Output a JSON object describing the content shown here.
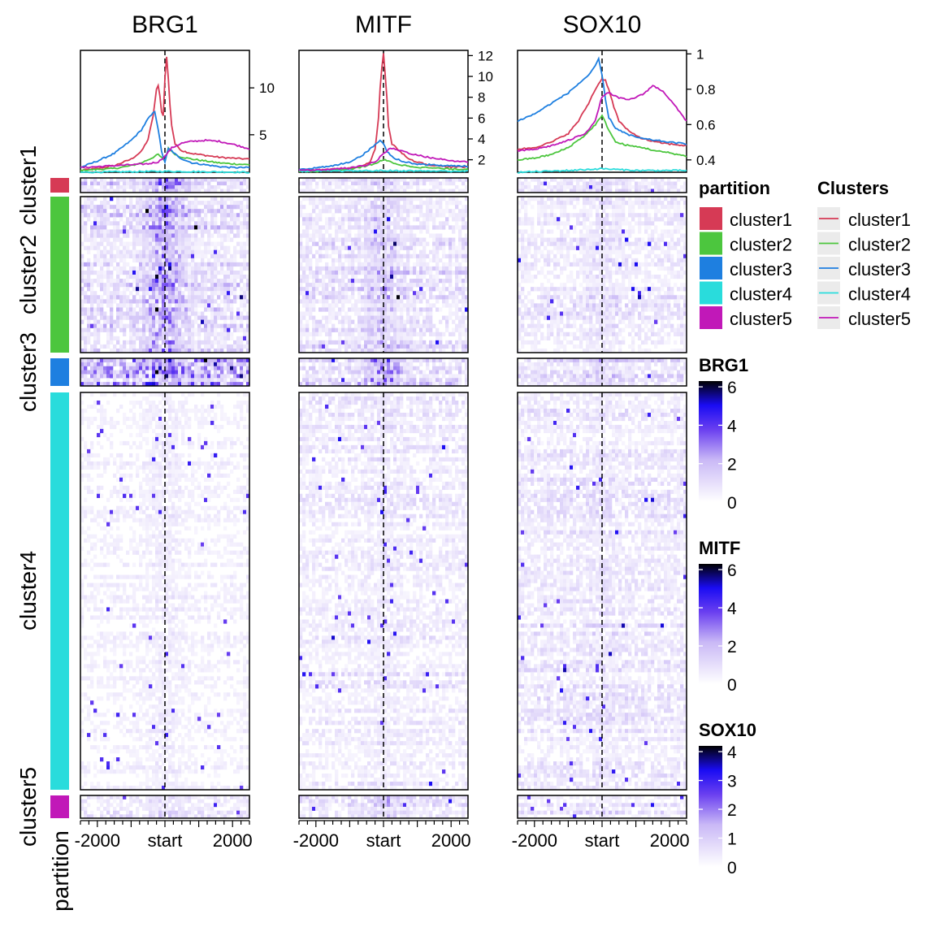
{
  "colors": {
    "cluster1": "#D63A55",
    "cluster2": "#4CC63E",
    "cluster3": "#1E7FE0",
    "cluster4": "#29DCDC",
    "cluster5": "#C118B8",
    "heat_low": "#ffffff",
    "heat_mid1": "#a98df0",
    "heat_mid2": "#1a0cf3",
    "heat_high": "#000000"
  },
  "chart_data": {
    "type": "heatmap",
    "subtype": "profile heatmap with average-profile line plots",
    "x_ticks": [
      "-2000",
      "start",
      "2000"
    ],
    "x_range": [
      -2500,
      2500
    ],
    "row_annotation_title": "partition",
    "clusters": [
      "cluster1",
      "cluster2",
      "cluster3",
      "cluster4",
      "cluster5"
    ],
    "cluster_row_fraction": [
      0.035,
      0.255,
      0.045,
      0.615,
      0.05
    ],
    "legend_partition_title": "partition",
    "legend_lines_title": "Clusters",
    "panels": [
      {
        "name": "BRG1",
        "profile_ticks": [
          "5",
          "10"
        ],
        "profile_ylim": [
          1,
          14
        ],
        "profile_series": [
          {
            "name": "cluster1",
            "x": [
              -2500,
              -2000,
              -1500,
              -1000,
              -700,
              -500,
              -350,
              -250,
              -180,
              -120,
              -60,
              0,
              60,
              120,
              200,
              300,
              500,
              800,
              1200,
              1600,
              2000,
              2500
            ],
            "values": [
              1.2,
              1.4,
              1.7,
              2.4,
              3.2,
              4.5,
              7.0,
              9.8,
              10.4,
              8.0,
              6.3,
              11.0,
              13.8,
              9.5,
              6.0,
              4.0,
              3.3,
              3.0,
              2.8,
              2.6,
              2.5,
              2.4
            ]
          },
          {
            "name": "cluster2",
            "x": [
              -2500,
              -2000,
              -1500,
              -1000,
              -700,
              -400,
              -200,
              0,
              100,
              200,
              400,
              800,
              1200,
              1600,
              2000,
              2500
            ],
            "values": [
              1.2,
              1.3,
              1.4,
              1.7,
              2.0,
              2.5,
              2.9,
              2.2,
              3.6,
              3.2,
              2.7,
              2.4,
              2.2,
              2.0,
              1.9,
              1.8
            ]
          },
          {
            "name": "cluster3",
            "x": [
              -2500,
              -2000,
              -1500,
              -1000,
              -700,
              -500,
              -300,
              -200,
              -100,
              0,
              100,
              200,
              400,
              800,
              1200,
              1600,
              2000,
              2500
            ],
            "values": [
              1.5,
              2.2,
              3.0,
              4.4,
              5.5,
              6.7,
              7.5,
              5.6,
              3.2,
              2.1,
              3.5,
              3.3,
              2.6,
              2.0,
              1.8,
              1.6,
              1.5,
              1.5
            ]
          },
          {
            "name": "cluster4",
            "x": [
              -2500,
              0,
              2500
            ],
            "values": [
              1.0,
              1.1,
              1.0
            ]
          },
          {
            "name": "cluster5",
            "x": [
              -2500,
              -2000,
              -1500,
              -1000,
              -500,
              -200,
              0,
              200,
              500,
              800,
              1200,
              1600,
              2000,
              2500
            ],
            "values": [
              1.5,
              1.6,
              1.7,
              1.8,
              1.9,
              2.1,
              2.7,
              3.6,
              4.1,
              4.3,
              4.4,
              4.3,
              4.0,
              3.5
            ]
          }
        ]
      },
      {
        "name": "MITF",
        "profile_ticks": [
          "2",
          "4",
          "6",
          "8",
          "10",
          "12"
        ],
        "profile_ylim": [
          0.8,
          12.5
        ],
        "profile_series": [
          {
            "name": "cluster1",
            "x": [
              -2500,
              -2000,
              -1500,
              -1000,
              -600,
              -400,
              -250,
              -150,
              -80,
              0,
              80,
              150,
              250,
              400,
              600,
              800,
              1200,
              1600,
              2000,
              2500
            ],
            "values": [
              1.0,
              1.0,
              1.1,
              1.2,
              1.4,
              1.8,
              3.0,
              6.0,
              10.0,
              12.2,
              9.0,
              5.2,
              3.5,
              3.1,
              2.5,
              2.0,
              1.6,
              1.4,
              1.3,
              1.3
            ]
          },
          {
            "name": "cluster2",
            "x": [
              -2500,
              -2000,
              -1500,
              -1000,
              -500,
              -200,
              0,
              200,
              500,
              1000,
              1500,
              2000,
              2500
            ],
            "values": [
              0.9,
              0.9,
              1.0,
              1.1,
              1.4,
              1.7,
              2.0,
              1.8,
              1.5,
              1.3,
              1.2,
              1.1,
              1.1
            ]
          },
          {
            "name": "cluster3",
            "x": [
              -2500,
              -2000,
              -1500,
              -1000,
              -600,
              -300,
              -100,
              0,
              100,
              300,
              600,
              1000,
              1500,
              2000,
              2500
            ],
            "values": [
              1.1,
              1.2,
              1.4,
              1.8,
              2.5,
              3.3,
              3.9,
              3.6,
              2.8,
              2.2,
              1.8,
              1.6,
              1.5,
              1.4,
              1.4
            ]
          },
          {
            "name": "cluster4",
            "x": [
              -2500,
              0,
              2500
            ],
            "values": [
              0.9,
              0.95,
              0.9
            ]
          },
          {
            "name": "cluster5",
            "x": [
              -2500,
              -2000,
              -1500,
              -1000,
              -500,
              -200,
              0,
              200,
              500,
              800,
              1200,
              1600,
              2000,
              2500
            ],
            "values": [
              1.0,
              1.0,
              1.1,
              1.2,
              1.5,
              1.9,
              2.6,
              3.1,
              2.9,
              2.6,
              2.3,
              2.1,
              1.9,
              1.8
            ]
          }
        ]
      },
      {
        "name": "SOX10",
        "profile_ticks": [
          "0.4",
          "0.6",
          "0.8",
          "1"
        ],
        "profile_ylim": [
          0.33,
          1.02
        ],
        "profile_series": [
          {
            "name": "cluster1",
            "x": [
              -2500,
              -2000,
              -1500,
              -1000,
              -700,
              -400,
              -200,
              0,
              100,
              200,
              350,
              500,
              800,
              1200,
              1600,
              2000,
              2500
            ],
            "values": [
              0.46,
              0.47,
              0.5,
              0.55,
              0.62,
              0.72,
              0.8,
              0.86,
              0.85,
              0.8,
              0.7,
              0.62,
              0.56,
              0.52,
              0.5,
              0.49,
              0.48
            ]
          },
          {
            "name": "cluster2",
            "x": [
              -2500,
              -2000,
              -1500,
              -1000,
              -500,
              -200,
              0,
              200,
              400,
              800,
              1200,
              1600,
              2000,
              2500
            ],
            "values": [
              0.4,
              0.41,
              0.43,
              0.47,
              0.54,
              0.6,
              0.65,
              0.57,
              0.5,
              0.48,
              0.47,
              0.45,
              0.44,
              0.42
            ]
          },
          {
            "name": "cluster3",
            "x": [
              -2500,
              -2000,
              -1500,
              -1000,
              -700,
              -400,
              -200,
              -100,
              0,
              100,
              200,
              400,
              800,
              1200,
              1600,
              2000,
              2500
            ],
            "values": [
              0.62,
              0.66,
              0.72,
              0.78,
              0.83,
              0.88,
              0.93,
              0.97,
              0.88,
              0.74,
              0.64,
              0.58,
              0.54,
              0.52,
              0.51,
              0.5,
              0.49
            ]
          },
          {
            "name": "cluster4",
            "x": [
              -2500,
              -1000,
              0,
              1000,
              2500
            ],
            "values": [
              0.33,
              0.34,
              0.35,
              0.34,
              0.34
            ]
          },
          {
            "name": "cluster5",
            "x": [
              -2500,
              -2000,
              -1500,
              -1000,
              -500,
              -200,
              0,
              200,
              500,
              800,
              1200,
              1500,
              1800,
              2100,
              2500
            ],
            "values": [
              0.45,
              0.46,
              0.48,
              0.51,
              0.55,
              0.62,
              0.76,
              0.78,
              0.75,
              0.74,
              0.77,
              0.82,
              0.79,
              0.72,
              0.62
            ]
          }
        ]
      }
    ],
    "colorbars": [
      {
        "name": "BRG1",
        "ticks": [
          "0",
          "2",
          "4",
          "6"
        ],
        "range": [
          0,
          6.3
        ]
      },
      {
        "name": "MITF",
        "ticks": [
          "0",
          "2",
          "4",
          "6"
        ],
        "range": [
          0,
          6.3
        ]
      },
      {
        "name": "SOX10",
        "ticks": [
          "0",
          "1",
          "2",
          "3",
          "4"
        ],
        "range": [
          0,
          4.2
        ]
      }
    ]
  }
}
